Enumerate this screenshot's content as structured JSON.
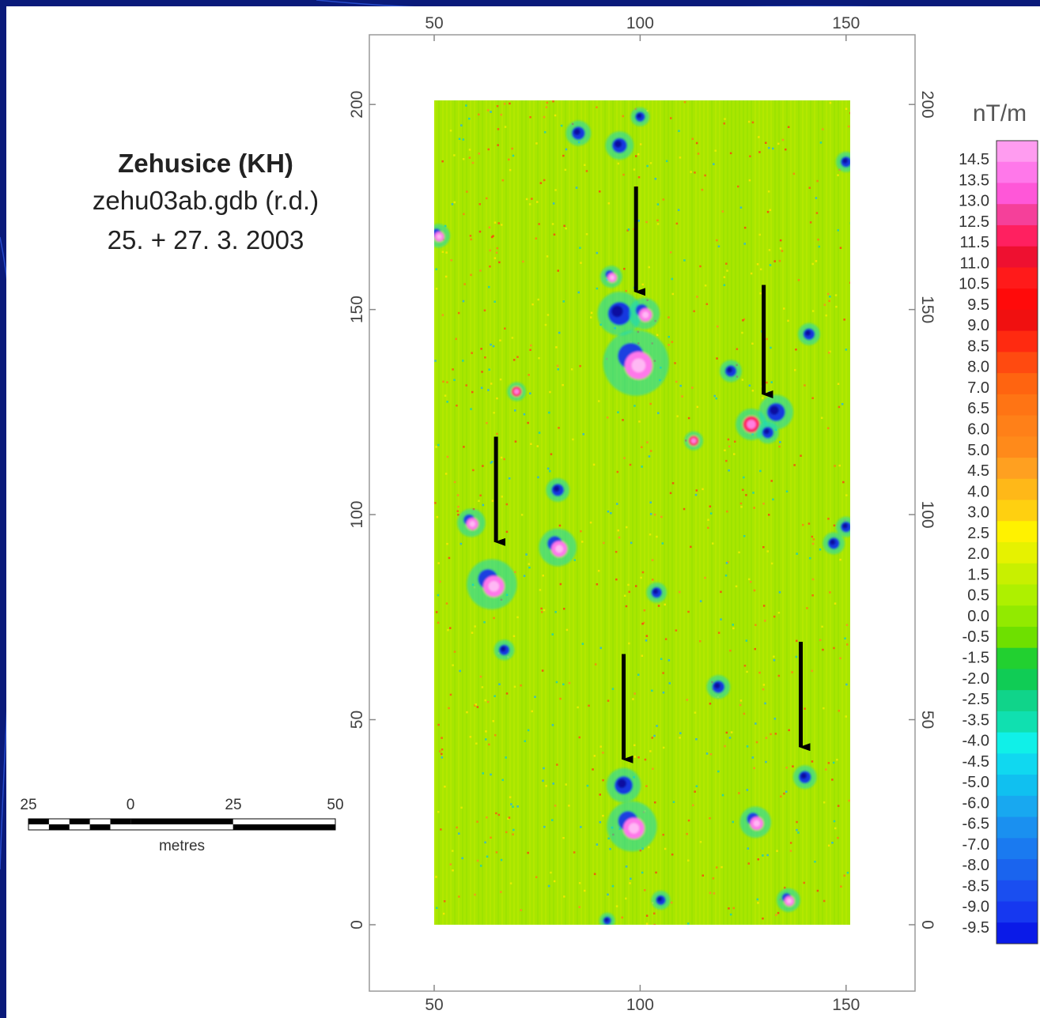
{
  "title": {
    "site": "Zehusice (KH)",
    "file": "zehu03ab.gdb (r.d.)",
    "date": "25. + 27. 3. 2003"
  },
  "scale_bar": {
    "labels": [
      "25",
      "0",
      "25",
      "50"
    ],
    "unit": "metres"
  },
  "axes": {
    "x_ticks": [
      "50",
      "100",
      "150"
    ],
    "y_ticks": [
      "0",
      "50",
      "100",
      "150",
      "200"
    ],
    "x_range": [
      50,
      151
    ],
    "y_range": [
      0,
      201
    ]
  },
  "colorbar": {
    "unit": "nT/m",
    "labels": [
      "14.5",
      "13.5",
      "13.0",
      "12.5",
      "11.5",
      "11.0",
      "10.5",
      "9.5",
      "9.0",
      "8.5",
      "8.0",
      "7.0",
      "6.5",
      "6.0",
      "5.0",
      "4.5",
      "4.0",
      "3.0",
      "2.5",
      "2.0",
      "1.5",
      "0.5",
      "0.0",
      "-0.5",
      "-1.5",
      "-2.0",
      "-2.5",
      "-3.5",
      "-4.0",
      "-4.5",
      "-5.0",
      "-6.0",
      "-6.5",
      "-7.0",
      "-8.0",
      "-8.5",
      "-9.0",
      "-9.5"
    ],
    "colors": [
      "#ff9cf0",
      "#ff78ea",
      "#ff57d8",
      "#f5409a",
      "#ff2060",
      "#ee1030",
      "#ff1a1a",
      "#ff0a0a",
      "#f01010",
      "#ff2a10",
      "#ff4a10",
      "#ff6410",
      "#ff7414",
      "#ff8018",
      "#ff8a1a",
      "#ffa020",
      "#ffb818",
      "#ffd010",
      "#fff200",
      "#e6f200",
      "#c8f000",
      "#aef000",
      "#92ea00",
      "#6ee000",
      "#22d030",
      "#10cc55",
      "#10d48a",
      "#10e0b0",
      "#10f0e8",
      "#10d8f0",
      "#10c0f0",
      "#18a8f0",
      "#1a90f0",
      "#1a7af0",
      "#1a64ee",
      "#1a4ef0",
      "#1638f0",
      "#0a1ae8"
    ],
    "color_roles": {
      "background": "#a8e600",
      "page_bg": "#0a1a7a"
    }
  },
  "anomalies": [
    {
      "x": 64,
      "y": 83,
      "r": 3.2,
      "kind": "pink-blue"
    },
    {
      "x": 80,
      "y": 92,
      "r": 2.4,
      "kind": "pink-blue"
    },
    {
      "x": 59,
      "y": 98,
      "r": 1.8,
      "kind": "pink-blue"
    },
    {
      "x": 95,
      "y": 149,
      "r": 2.8,
      "kind": "blue"
    },
    {
      "x": 101,
      "y": 149,
      "r": 2.0,
      "kind": "pink-blue"
    },
    {
      "x": 99,
      "y": 137,
      "r": 4.2,
      "kind": "pink-blue"
    },
    {
      "x": 127,
      "y": 122,
      "r": 2.0,
      "kind": "red"
    },
    {
      "x": 133,
      "y": 125,
      "r": 2.2,
      "kind": "blue"
    },
    {
      "x": 131,
      "y": 120,
      "r": 1.4,
      "kind": "blue"
    },
    {
      "x": 96,
      "y": 34,
      "r": 2.2,
      "kind": "blue"
    },
    {
      "x": 98,
      "y": 24,
      "r": 3.2,
      "kind": "pink-blue"
    },
    {
      "x": 128,
      "y": 25,
      "r": 2.0,
      "kind": "pink-blue"
    },
    {
      "x": 140,
      "y": 36,
      "r": 1.5,
      "kind": "blue"
    },
    {
      "x": 85,
      "y": 193,
      "r": 1.6,
      "kind": "blue"
    },
    {
      "x": 95,
      "y": 190,
      "r": 1.8,
      "kind": "blue"
    },
    {
      "x": 100,
      "y": 197,
      "r": 1.2,
      "kind": "blue"
    },
    {
      "x": 51,
      "y": 168,
      "r": 1.5,
      "kind": "pink-blue"
    },
    {
      "x": 150,
      "y": 186,
      "r": 1.3,
      "kind": "blue"
    },
    {
      "x": 80,
      "y": 106,
      "r": 1.5,
      "kind": "blue"
    },
    {
      "x": 93,
      "y": 158,
      "r": 1.4,
      "kind": "pink-blue"
    },
    {
      "x": 122,
      "y": 135,
      "r": 1.4,
      "kind": "blue"
    },
    {
      "x": 147,
      "y": 93,
      "r": 1.4,
      "kind": "blue"
    },
    {
      "x": 150,
      "y": 97,
      "r": 1.3,
      "kind": "blue"
    },
    {
      "x": 119,
      "y": 58,
      "r": 1.5,
      "kind": "blue"
    },
    {
      "x": 67,
      "y": 67,
      "r": 1.3,
      "kind": "blue"
    },
    {
      "x": 104,
      "y": 81,
      "r": 1.3,
      "kind": "blue"
    },
    {
      "x": 141,
      "y": 144,
      "r": 1.4,
      "kind": "blue"
    },
    {
      "x": 113,
      "y": 118,
      "r": 1.2,
      "kind": "red"
    },
    {
      "x": 70,
      "y": 130,
      "r": 1.2,
      "kind": "red"
    },
    {
      "x": 136,
      "y": 6,
      "r": 1.5,
      "kind": "pink-blue"
    },
    {
      "x": 105,
      "y": 6,
      "r": 1.2,
      "kind": "blue"
    },
    {
      "x": 92,
      "y": 1,
      "r": 1.0,
      "kind": "blue"
    }
  ],
  "arrows": [
    {
      "x": 99,
      "y_from": 180,
      "y_to": 152
    },
    {
      "x": 130,
      "y_from": 156,
      "y_to": 127
    },
    {
      "x": 65,
      "y_from": 119,
      "y_to": 91
    },
    {
      "x": 96,
      "y_from": 66,
      "y_to": 38
    },
    {
      "x": 139,
      "y_from": 69,
      "y_to": 41
    }
  ]
}
